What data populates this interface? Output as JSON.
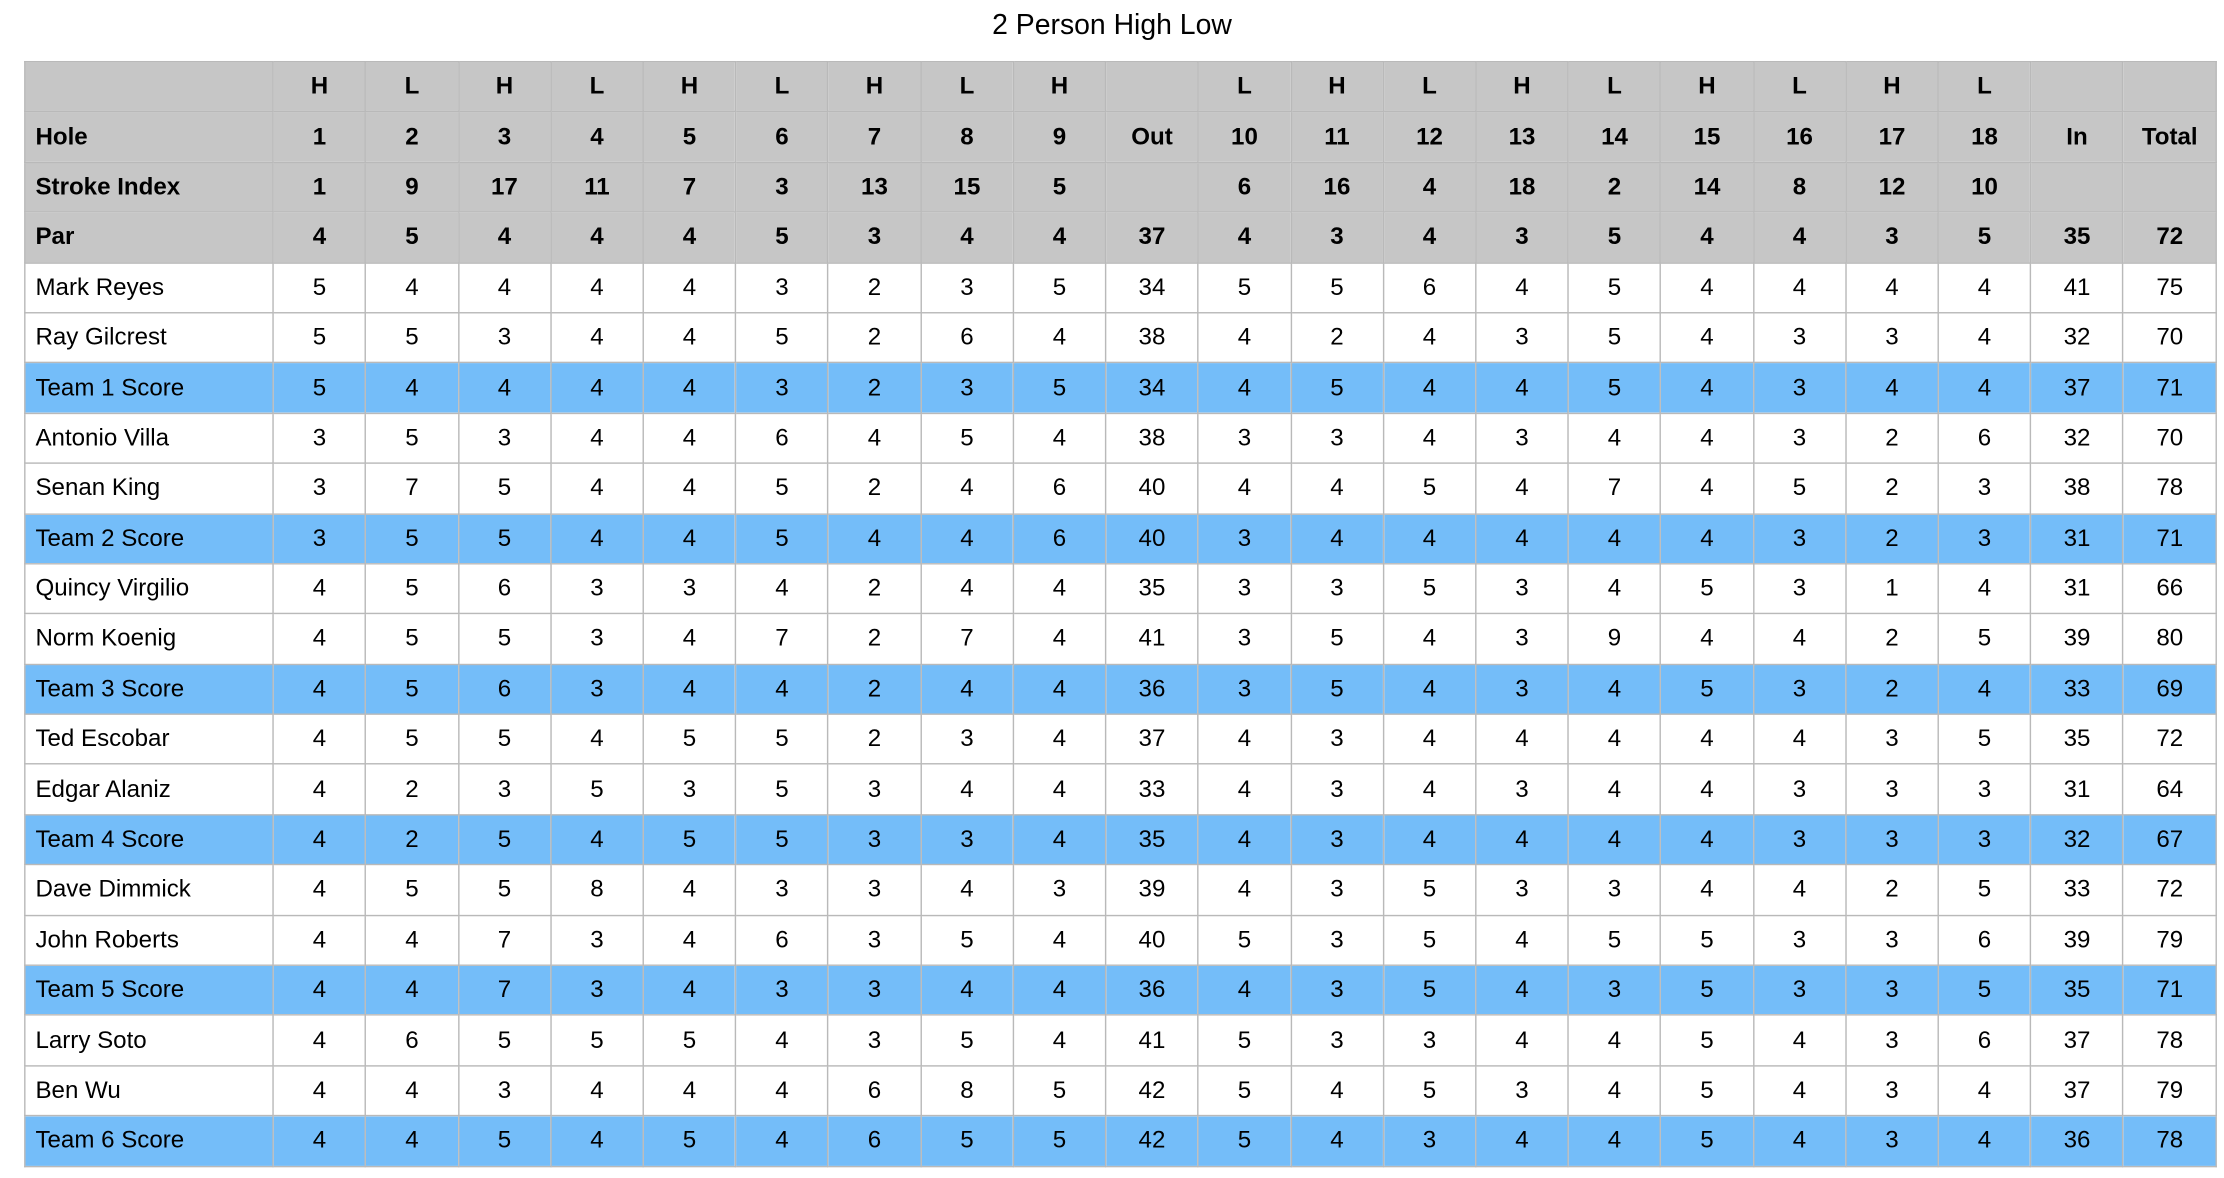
{
  "title": "2 Person High Low",
  "header_rows": [
    {
      "label": "",
      "cells": [
        "H",
        "L",
        "H",
        "L",
        "H",
        "L",
        "H",
        "L",
        "H",
        "",
        "L",
        "H",
        "L",
        "H",
        "L",
        "H",
        "L",
        "H",
        "L",
        "",
        ""
      ]
    },
    {
      "label": "Hole",
      "cells": [
        "1",
        "2",
        "3",
        "4",
        "5",
        "6",
        "7",
        "8",
        "9",
        "Out",
        "10",
        "11",
        "12",
        "13",
        "14",
        "15",
        "16",
        "17",
        "18",
        "In",
        "Total"
      ]
    },
    {
      "label": "Stroke Index",
      "cells": [
        "1",
        "9",
        "17",
        "11",
        "7",
        "3",
        "13",
        "15",
        "5",
        "",
        "6",
        "16",
        "4",
        "18",
        "2",
        "14",
        "8",
        "12",
        "10",
        "",
        ""
      ]
    },
    {
      "label": "Par",
      "cells": [
        "4",
        "5",
        "4",
        "4",
        "4",
        "5",
        "3",
        "4",
        "4",
        "37",
        "4",
        "3",
        "4",
        "3",
        "5",
        "4",
        "4",
        "3",
        "5",
        "35",
        "72"
      ]
    }
  ],
  "rows": [
    {
      "type": "player",
      "name": "Mark Reyes",
      "scores": [
        "5",
        "4",
        "4",
        "4",
        "4",
        "3",
        "2",
        "3",
        "5",
        "34",
        "5",
        "5",
        "6",
        "4",
        "5",
        "4",
        "4",
        "4",
        "4",
        "41",
        "75"
      ]
    },
    {
      "type": "player",
      "name": "Ray Gilcrest",
      "scores": [
        "5",
        "5",
        "3",
        "4",
        "4",
        "5",
        "2",
        "6",
        "4",
        "38",
        "4",
        "2",
        "4",
        "3",
        "5",
        "4",
        "3",
        "3",
        "4",
        "32",
        "70"
      ]
    },
    {
      "type": "team",
      "name": "Team 1 Score",
      "scores": [
        "5",
        "4",
        "4",
        "4",
        "4",
        "3",
        "2",
        "3",
        "5",
        "34",
        "4",
        "5",
        "4",
        "4",
        "5",
        "4",
        "3",
        "4",
        "4",
        "37",
        "71"
      ]
    },
    {
      "type": "player",
      "name": "Antonio Villa",
      "scores": [
        "3",
        "5",
        "3",
        "4",
        "4",
        "6",
        "4",
        "5",
        "4",
        "38",
        "3",
        "3",
        "4",
        "3",
        "4",
        "4",
        "3",
        "2",
        "6",
        "32",
        "70"
      ]
    },
    {
      "type": "player",
      "name": "Senan King",
      "scores": [
        "3",
        "7",
        "5",
        "4",
        "4",
        "5",
        "2",
        "4",
        "6",
        "40",
        "4",
        "4",
        "5",
        "4",
        "7",
        "4",
        "5",
        "2",
        "3",
        "38",
        "78"
      ]
    },
    {
      "type": "team",
      "name": "Team 2 Score",
      "scores": [
        "3",
        "5",
        "5",
        "4",
        "4",
        "5",
        "4",
        "4",
        "6",
        "40",
        "3",
        "4",
        "4",
        "4",
        "4",
        "4",
        "3",
        "2",
        "3",
        "31",
        "71"
      ]
    },
    {
      "type": "player",
      "name": "Quincy Virgilio",
      "scores": [
        "4",
        "5",
        "6",
        "3",
        "3",
        "4",
        "2",
        "4",
        "4",
        "35",
        "3",
        "3",
        "5",
        "3",
        "4",
        "5",
        "3",
        "1",
        "4",
        "31",
        "66"
      ]
    },
    {
      "type": "player",
      "name": "Norm Koenig",
      "scores": [
        "4",
        "5",
        "5",
        "3",
        "4",
        "7",
        "2",
        "7",
        "4",
        "41",
        "3",
        "5",
        "4",
        "3",
        "9",
        "4",
        "4",
        "2",
        "5",
        "39",
        "80"
      ]
    },
    {
      "type": "team",
      "name": "Team 3 Score",
      "scores": [
        "4",
        "5",
        "6",
        "3",
        "4",
        "4",
        "2",
        "4",
        "4",
        "36",
        "3",
        "5",
        "4",
        "3",
        "4",
        "5",
        "3",
        "2",
        "4",
        "33",
        "69"
      ]
    },
    {
      "type": "player",
      "name": "Ted Escobar",
      "scores": [
        "4",
        "5",
        "5",
        "4",
        "5",
        "5",
        "2",
        "3",
        "4",
        "37",
        "4",
        "3",
        "4",
        "4",
        "4",
        "4",
        "4",
        "3",
        "5",
        "35",
        "72"
      ]
    },
    {
      "type": "player",
      "name": "Edgar Alaniz",
      "scores": [
        "4",
        "2",
        "3",
        "5",
        "3",
        "5",
        "3",
        "4",
        "4",
        "33",
        "4",
        "3",
        "4",
        "3",
        "4",
        "4",
        "3",
        "3",
        "3",
        "31",
        "64"
      ]
    },
    {
      "type": "team",
      "name": "Team 4 Score",
      "scores": [
        "4",
        "2",
        "5",
        "4",
        "5",
        "5",
        "3",
        "3",
        "4",
        "35",
        "4",
        "3",
        "4",
        "4",
        "4",
        "4",
        "3",
        "3",
        "3",
        "32",
        "67"
      ]
    },
    {
      "type": "player",
      "name": "Dave Dimmick",
      "scores": [
        "4",
        "5",
        "5",
        "8",
        "4",
        "3",
        "3",
        "4",
        "3",
        "39",
        "4",
        "3",
        "5",
        "3",
        "3",
        "4",
        "4",
        "2",
        "5",
        "33",
        "72"
      ]
    },
    {
      "type": "player",
      "name": "John Roberts",
      "scores": [
        "4",
        "4",
        "7",
        "3",
        "4",
        "6",
        "3",
        "5",
        "4",
        "40",
        "5",
        "3",
        "5",
        "4",
        "5",
        "5",
        "3",
        "3",
        "6",
        "39",
        "79"
      ]
    },
    {
      "type": "team",
      "name": "Team 5 Score",
      "scores": [
        "4",
        "4",
        "7",
        "3",
        "4",
        "3",
        "3",
        "4",
        "4",
        "36",
        "4",
        "3",
        "5",
        "4",
        "3",
        "5",
        "3",
        "3",
        "5",
        "35",
        "71"
      ]
    },
    {
      "type": "player",
      "name": "Larry Soto",
      "scores": [
        "4",
        "6",
        "5",
        "5",
        "5",
        "4",
        "3",
        "5",
        "4",
        "41",
        "5",
        "3",
        "3",
        "4",
        "4",
        "5",
        "4",
        "3",
        "6",
        "37",
        "78"
      ]
    },
    {
      "type": "player",
      "name": "Ben Wu",
      "scores": [
        "4",
        "4",
        "3",
        "4",
        "4",
        "4",
        "6",
        "8",
        "5",
        "42",
        "5",
        "4",
        "5",
        "3",
        "4",
        "5",
        "4",
        "3",
        "4",
        "37",
        "79"
      ]
    },
    {
      "type": "team",
      "name": "Team 6 Score",
      "scores": [
        "4",
        "4",
        "5",
        "4",
        "5",
        "4",
        "6",
        "5",
        "5",
        "42",
        "5",
        "4",
        "3",
        "4",
        "4",
        "5",
        "4",
        "3",
        "4",
        "36",
        "78"
      ]
    }
  ],
  "colors": {
    "header_bg": "#c6c6c6",
    "team_bg": "#74bdf9",
    "player_bg": "#ffffff",
    "grid": "#b9b9b9"
  }
}
